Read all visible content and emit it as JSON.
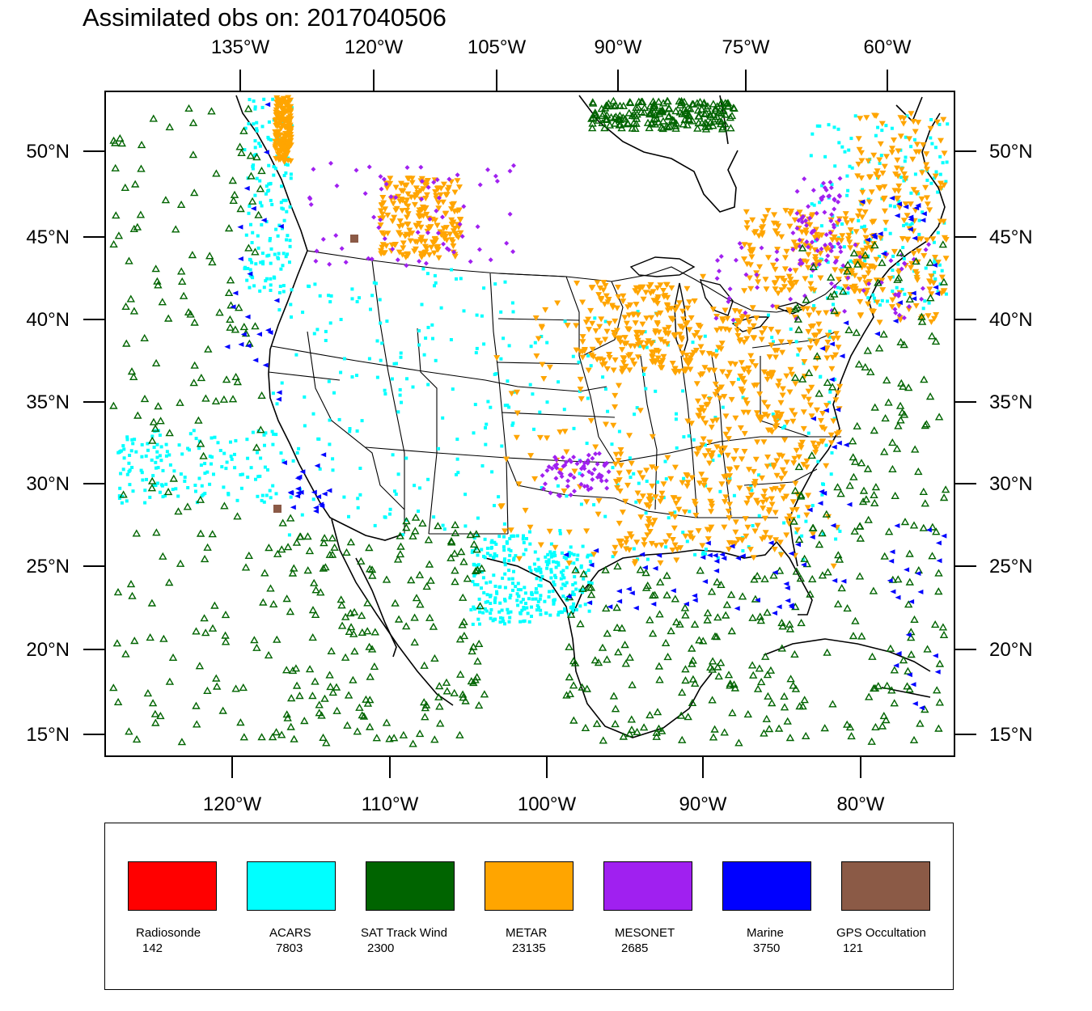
{
  "title": "Assimilated obs on: 2017040506",
  "map": {
    "top_lon_labels": [
      "135°W",
      "120°W",
      "105°W",
      "90°W",
      "75°W",
      "60°W"
    ],
    "bottom_lon_labels": [
      "120°W",
      "110°W",
      "100°W",
      "90°W",
      "80°W"
    ],
    "lat_labels": [
      "50°N",
      "45°N",
      "40°N",
      "35°N",
      "30°N",
      "25°N",
      "20°N",
      "15°N"
    ]
  },
  "legend": {
    "items": [
      {
        "name": "Radiosonde",
        "count": "142",
        "color": "#ff0000"
      },
      {
        "name": "ACARS",
        "count": "7803",
        "color": "#00ffff"
      },
      {
        "name": "SAT Track Wind",
        "count": "2300",
        "color": "#006400"
      },
      {
        "name": "METAR",
        "count": "23135",
        "color": "#ffa500"
      },
      {
        "name": "MESONET",
        "count": "2685",
        "color": "#a020f0"
      },
      {
        "name": "Marine",
        "count": "3750",
        "color": "#0000ff"
      },
      {
        "name": "GPS Occultation",
        "count": "121",
        "color": "#8b5a46"
      }
    ]
  }
}
